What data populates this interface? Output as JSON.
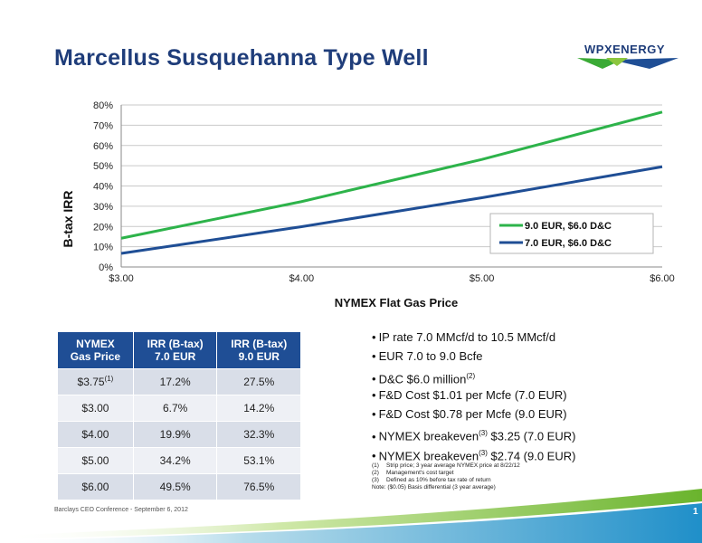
{
  "slide": {
    "title": "Marcellus Susquehanna Type Well",
    "logo_text": "WPXENERGY",
    "footer": "Barclays CEO Conference  - September 6, 2012",
    "page_number": "1"
  },
  "chart_data": {
    "type": "line",
    "ylabel": "B-tax IRR",
    "xlabel": "NYMEX Flat Gas Price",
    "x_ticks": [
      "$3.00",
      "$4.00",
      "$5.00",
      "$6.00"
    ],
    "y_ticks": [
      "0%",
      "10%",
      "20%",
      "30%",
      "40%",
      "50%",
      "60%",
      "70%",
      "80%"
    ],
    "xlim": [
      3.0,
      6.0
    ],
    "ylim": [
      0,
      80
    ],
    "legend_position": "bottom-right",
    "series": [
      {
        "name": "9.0 EUR, $6.0 D&C",
        "color": "#2db34a",
        "x": [
          3.0,
          4.0,
          5.0,
          6.0
        ],
        "y": [
          14.2,
          32.3,
          53.1,
          76.5
        ]
      },
      {
        "name": "7.0 EUR, $6.0 D&C",
        "color": "#1f4e95",
        "x": [
          3.0,
          4.0,
          5.0,
          6.0
        ],
        "y": [
          6.7,
          19.9,
          34.2,
          49.5
        ]
      }
    ]
  },
  "table": {
    "headers": [
      [
        "NYMEX",
        "Gas Price"
      ],
      [
        "IRR (B-tax)",
        "7.0 EUR"
      ],
      [
        "IRR (B-tax)",
        "9.0 EUR"
      ]
    ],
    "rows": [
      {
        "price": "$3.75",
        "price_sup": "(1)",
        "irr7": "17.2%",
        "irr9": "27.5%"
      },
      {
        "price": "$3.00",
        "price_sup": "",
        "irr7": "6.7%",
        "irr9": "14.2%"
      },
      {
        "price": "$4.00",
        "price_sup": "",
        "irr7": "19.9%",
        "irr9": "32.3%"
      },
      {
        "price": "$5.00",
        "price_sup": "",
        "irr7": "34.2%",
        "irr9": "53.1%"
      },
      {
        "price": "$6.00",
        "price_sup": "",
        "irr7": "49.5%",
        "irr9": "76.5%"
      }
    ]
  },
  "bullets": [
    {
      "pre": "IP rate 7.0 MMcf/d to 10.5 MMcf/d",
      "sup": "",
      "post": ""
    },
    {
      "pre": "EUR 7.0 to 9.0 Bcfe",
      "sup": "",
      "post": ""
    },
    {
      "pre": "D&C $6.0 million",
      "sup": "(2)",
      "post": ""
    },
    {
      "pre": "F&D Cost $1.01 per Mcfe (7.0 EUR)",
      "sup": "",
      "post": ""
    },
    {
      "pre": "F&D Cost $0.78 per Mcfe (9.0 EUR)",
      "sup": "",
      "post": ""
    },
    {
      "pre": "NYMEX breakeven",
      "sup": "(3)",
      "post": " $3.25 (7.0 EUR)"
    },
    {
      "pre": "NYMEX breakeven",
      "sup": "(3)",
      "post": " $2.74 (9.0 EUR)"
    }
  ],
  "notes": [
    {
      "num": "(1)",
      "text": "Strip price; 3 year average  NYMEX price at 8/22/12"
    },
    {
      "num": "(2)",
      "text": "Management's cost target"
    },
    {
      "num": "(3)",
      "text": "Defined as  10% before tax rate of return"
    },
    {
      "num": "Note:",
      "text": "($0.05) Basis differential  (3 year average)"
    }
  ]
}
